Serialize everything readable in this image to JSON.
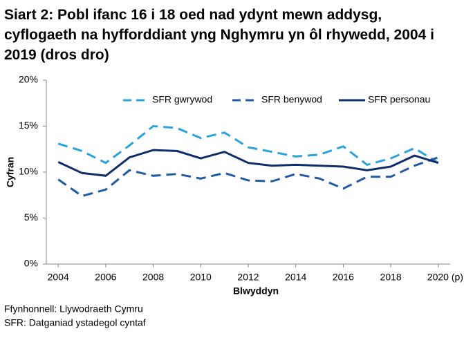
{
  "chart_data": {
    "type": "line",
    "title": "Siart 2: Pobl ifanc 16 i 18 oed nad ydynt mewn addysg, cyflogaeth na hyfforddiant yng Nghymru yn ôl rhywedd, 2004 i 2019 (dros dro)",
    "x_label": "Blwyddyn",
    "y_label": "Cyfran",
    "x": [
      2004,
      2005,
      2006,
      2007,
      2008,
      2009,
      2010,
      2011,
      2012,
      2013,
      2014,
      2015,
      2016,
      2017,
      2018,
      2019,
      2020
    ],
    "xlim": [
      2003.5,
      2020.5
    ],
    "xticks": [
      2004,
      2006,
      2008,
      2010,
      2012,
      2014,
      2016,
      2018,
      {
        "value": 2020,
        "label": "2020 (p)"
      }
    ],
    "ylim": [
      0,
      20
    ],
    "yticks": [
      {
        "value": 0,
        "label": "0%"
      },
      {
        "value": 5,
        "label": "5%"
      },
      {
        "value": 10,
        "label": "10%"
      },
      {
        "value": 15,
        "label": "15%"
      },
      {
        "value": 20,
        "label": "20%"
      }
    ],
    "grid": false,
    "legend": "top",
    "series": [
      {
        "name": "SFR gwrywod",
        "color": "#29a3dd",
        "dash": "dashed",
        "values": [
          13.1,
          12.3,
          11.0,
          12.9,
          15.0,
          14.8,
          13.7,
          14.3,
          12.7,
          12.2,
          11.7,
          11.9,
          12.8,
          10.8,
          11.5,
          12.6,
          11.0
        ]
      },
      {
        "name": "SFR benywod",
        "color": "#1f5aa6",
        "dash": "dashed",
        "values": [
          9.2,
          7.4,
          8.1,
          10.2,
          9.6,
          9.8,
          9.3,
          9.9,
          9.1,
          9.0,
          9.8,
          9.3,
          8.2,
          9.5,
          9.5,
          10.7,
          11.6
        ]
      },
      {
        "name": "SFR personau",
        "color": "#0f2d6b",
        "dash": "solid",
        "values": [
          11.1,
          9.9,
          9.6,
          11.6,
          12.4,
          12.3,
          11.5,
          12.2,
          11.0,
          10.7,
          10.8,
          10.7,
          10.6,
          10.2,
          10.6,
          11.8,
          11.0
        ]
      }
    ],
    "source": "Ffynhonnell: Llywodraeth Cymru",
    "note": "SFR: Datganiad ystadegol cyntaf"
  }
}
